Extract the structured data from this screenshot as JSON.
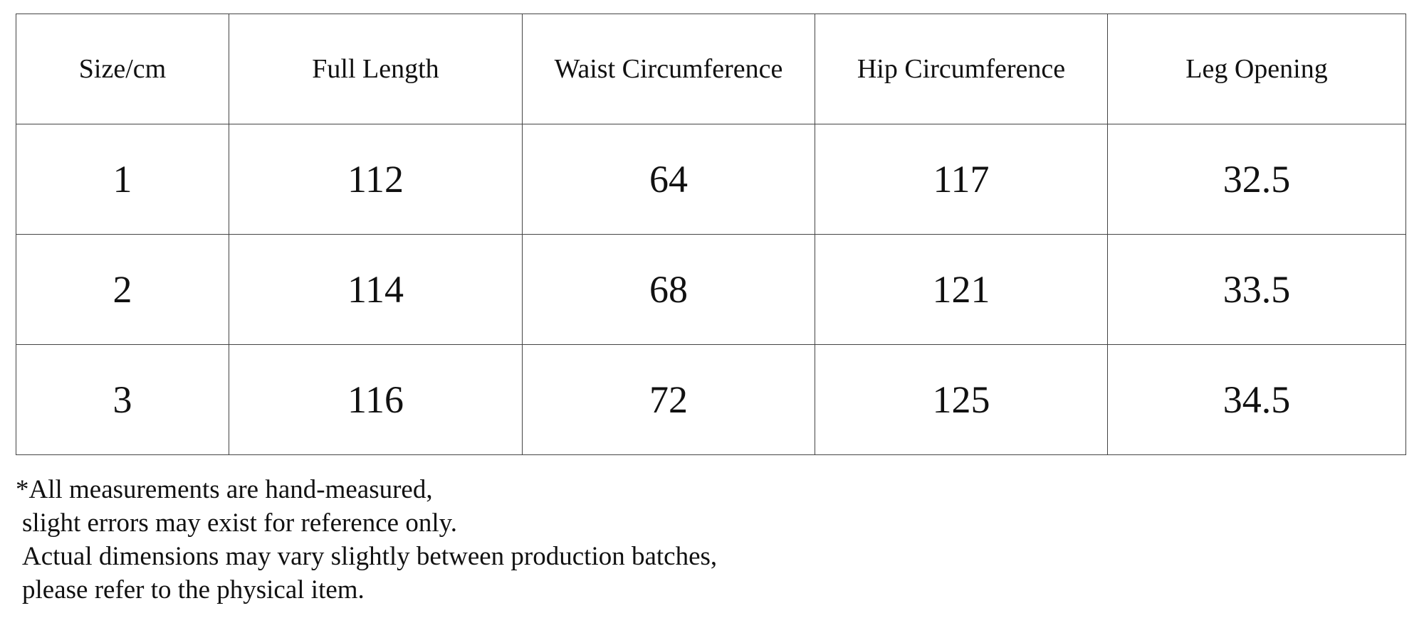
{
  "table": {
    "headers": [
      "Size/cm",
      "Full Length",
      "Waist Circumference",
      "Hip Circumference",
      "Leg Opening"
    ],
    "rows": [
      [
        1,
        112,
        64,
        117,
        32.5
      ],
      [
        2,
        114,
        68,
        121,
        33.5
      ],
      [
        3,
        116,
        72,
        125,
        34.5
      ]
    ]
  },
  "note": {
    "lines": [
      "*All measurements are hand-measured,",
      "slight errors may exist for reference only.",
      "Actual dimensions may vary slightly between production batches,",
      "please refer to the physical item."
    ]
  }
}
